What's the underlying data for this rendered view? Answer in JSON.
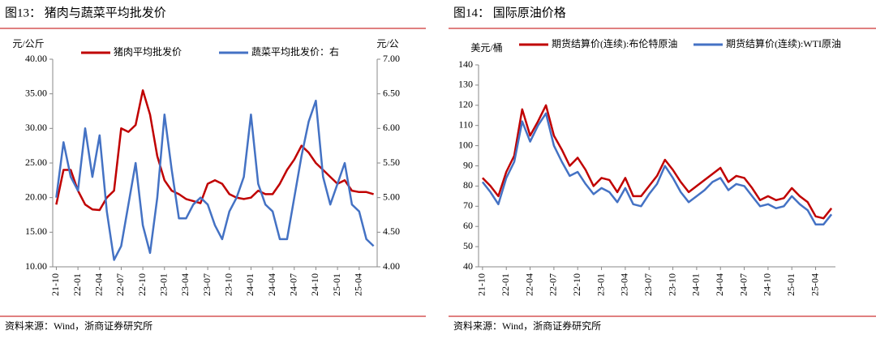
{
  "chart_data": [
    {
      "type": "line",
      "title": "图13：  猪肉与蔬菜平均批发价",
      "y_label": "元/公斤",
      "y2_label": "元/公",
      "source": "资料来源：Wind，浙商证券研究所",
      "categories": [
        "21-10",
        null,
        null,
        "22-01",
        null,
        null,
        "22-04",
        null,
        null,
        "22-07",
        null,
        null,
        "22-10",
        null,
        null,
        "23-01",
        null,
        null,
        "23-04",
        null,
        null,
        "23-07",
        null,
        null,
        "23-10",
        null,
        null,
        "24-01",
        null,
        null,
        "24-04",
        null,
        null,
        "24-07",
        null,
        null,
        "24-10",
        null,
        null,
        "25-01",
        null,
        null,
        "25-04",
        null,
        null
      ],
      "ylim": [
        10,
        40
      ],
      "yticks": [
        {
          "value": 10,
          "label": "10.00"
        },
        {
          "value": 15,
          "label": "15.00"
        },
        {
          "value": 20,
          "label": "20.00"
        },
        {
          "value": 25,
          "label": "25.00"
        },
        {
          "value": 30,
          "label": "30.00"
        },
        {
          "value": 35,
          "label": "35.00"
        },
        {
          "value": 40,
          "label": "40.00"
        }
      ],
      "y2lim": [
        4,
        7
      ],
      "y2ticks": [
        {
          "value": 4,
          "label": "4.00"
        },
        {
          "value": 4.5,
          "label": "4.50"
        },
        {
          "value": 5,
          "label": "5.00"
        },
        {
          "value": 5.5,
          "label": "5.50"
        },
        {
          "value": 6,
          "label": "6.00"
        },
        {
          "value": 6.5,
          "label": "6.50"
        },
        {
          "value": 7,
          "label": "7.00"
        }
      ],
      "series": [
        {
          "name": "猪肉平均批发价",
          "color": "#c00000",
          "values": [
            19,
            24,
            24,
            21,
            19,
            18.3,
            18.2,
            20,
            21,
            30,
            29.5,
            30.5,
            35.5,
            32,
            26,
            22.5,
            21,
            20.5,
            19.8,
            19.5,
            19.2,
            22,
            22.5,
            22,
            20.5,
            20,
            19.8,
            20,
            21,
            20.5,
            20.5,
            22,
            24,
            25.5,
            27.5,
            26.5,
            25,
            24,
            23,
            22,
            22.5,
            21,
            20.8,
            20.8,
            20.5
          ]
        },
        {
          "name": "蔬菜平均批发价：右",
          "color": "#4472c4",
          "axis": "y2",
          "values": [
            5.0,
            5.8,
            5.3,
            5.1,
            6.0,
            5.3,
            5.9,
            4.8,
            4.1,
            4.3,
            4.9,
            5.5,
            4.6,
            4.2,
            5.0,
            6.2,
            5.4,
            4.7,
            4.7,
            4.9,
            5.0,
            4.9,
            4.6,
            4.4,
            4.8,
            5.0,
            5.3,
            6.2,
            5.2,
            4.9,
            4.8,
            4.4,
            4.4,
            5.0,
            5.6,
            6.1,
            6.4,
            5.3,
            4.9,
            5.2,
            5.5,
            4.9,
            4.8,
            4.4,
            4.3
          ]
        }
      ]
    },
    {
      "type": "line",
      "title": "图14：  国际原油价格",
      "y_label": "美元/桶",
      "source": "资料来源：Wind，浙商证券研究所",
      "categories": [
        "21-10",
        null,
        null,
        "22-01",
        null,
        null,
        "22-04",
        null,
        null,
        "22-07",
        null,
        null,
        "22-10",
        null,
        null,
        "23-01",
        null,
        null,
        "23-04",
        null,
        null,
        "23-07",
        null,
        null,
        "23-10",
        null,
        null,
        "24-01",
        null,
        null,
        "24-04",
        null,
        null,
        "24-07",
        null,
        null,
        "24-10",
        null,
        null,
        "25-01",
        null,
        null,
        "25-04",
        null,
        null
      ],
      "ylim": [
        40,
        140
      ],
      "yticks": [
        40,
        50,
        60,
        70,
        80,
        90,
        100,
        110,
        120,
        130,
        140
      ],
      "series": [
        {
          "name": "期货结算价(连续):布伦特原油",
          "color": "#c00000",
          "values": [
            84,
            80,
            75,
            87,
            95,
            118,
            105,
            112,
            120,
            105,
            98,
            90,
            94,
            88,
            80,
            84,
            83,
            77,
            84,
            75,
            75,
            80,
            85,
            93,
            88,
            82,
            77,
            80,
            83,
            86,
            89,
            82,
            85,
            84,
            79,
            73,
            75,
            73,
            74,
            79,
            75,
            72,
            65,
            64,
            69
          ]
        },
        {
          "name": "期货结算价(连续):WTI原油",
          "color": "#4472c4",
          "values": [
            82,
            77,
            71,
            84,
            92,
            112,
            102,
            110,
            116,
            100,
            92,
            85,
            87,
            81,
            76,
            79,
            77,
            72,
            79,
            71,
            70,
            76,
            81,
            90,
            84,
            77,
            72,
            75,
            78,
            82,
            84,
            78,
            81,
            80,
            75,
            70,
            71,
            69,
            70,
            75,
            71,
            68,
            61,
            61,
            66
          ]
        }
      ]
    }
  ]
}
